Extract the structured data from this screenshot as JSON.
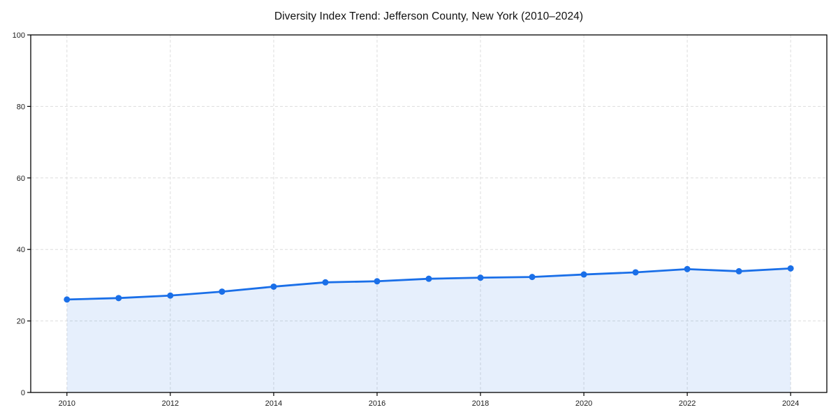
{
  "page": {
    "background": "#ffffff"
  },
  "chart_data": {
    "type": "area",
    "title": "Diversity Index Trend: Jefferson County, New York (2010–2024)",
    "x": [
      2010,
      2011,
      2012,
      2013,
      2014,
      2015,
      2016,
      2017,
      2018,
      2019,
      2020,
      2021,
      2022,
      2023,
      2024
    ],
    "series": [
      {
        "name": "Diversity Index",
        "values": [
          26.0,
          26.4,
          27.1,
          28.2,
          29.6,
          30.8,
          31.1,
          31.8,
          32.1,
          32.3,
          33.0,
          33.6,
          34.5,
          33.9,
          34.7
        ]
      }
    ],
    "xlabel": "",
    "ylabel": "",
    "xlim": [
      2009.3,
      2024.7
    ],
    "ylim": [
      0,
      100
    ],
    "xticks": [
      2010,
      2012,
      2014,
      2016,
      2018,
      2020,
      2022,
      2024
    ],
    "yticks": [
      0,
      20,
      40,
      60,
      80,
      100
    ],
    "grid": true,
    "grid_style": "dashed",
    "legend": "none",
    "colors": {
      "line": "#1a6fe8",
      "marker": "#1a6fe8",
      "area_fill": "#1a6fe8",
      "area_fill_opacity": 0.11,
      "grid": "#dddddd",
      "spine": "#000000",
      "tick_label": "#1c1c1c",
      "title": "#111111",
      "background": "#ffffff"
    },
    "marker_radius": 4.5,
    "line_width": 2.8
  }
}
